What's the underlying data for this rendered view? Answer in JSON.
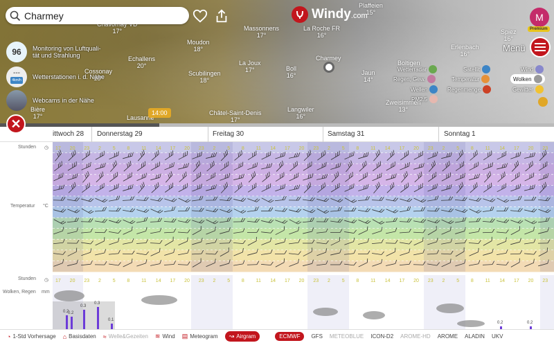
{
  "search": {
    "value": "Charmey"
  },
  "logo": {
    "name": "Windy",
    "suffix": ".com"
  },
  "account": {
    "initial": "M",
    "badge": "Premium"
  },
  "menu_label": "Menü",
  "towns": [
    {
      "name": "Chavornay VD",
      "temp": "17°"
    },
    {
      "name": "Monitoring von Luftquali-",
      "temp": ""
    },
    {
      "name": "Moudon",
      "temp": "18°"
    },
    {
      "name": "Massonnens",
      "temp": "17°"
    },
    {
      "name": "La Roche FR",
      "temp": "16°"
    },
    {
      "name": "Plaffeien",
      "temp": "15°"
    },
    {
      "name": "Echallens",
      "temp": "20°"
    },
    {
      "name": "La Joux",
      "temp": "17°"
    },
    {
      "name": "Cossonay",
      "temp": "18°"
    },
    {
      "name": "Scubilingen",
      "temp": "18°"
    },
    {
      "name": "Boll",
      "temp": "16°"
    },
    {
      "name": "Charmey",
      "temp": ""
    },
    {
      "name": "Jaun",
      "temp": "14°"
    },
    {
      "name": "Erlenbach",
      "temp": "16°"
    },
    {
      "name": "Spiez",
      "temp": "16°"
    },
    {
      "name": "Boltigen",
      "temp": ""
    },
    {
      "name": "Châtel-Saint-Denis",
      "temp": "17°"
    },
    {
      "name": "Langwiler",
      "temp": "16°"
    },
    {
      "name": "Zweisimmen",
      "temp": "13°"
    },
    {
      "name": "Bière",
      "temp": "17°"
    },
    {
      "name": "Lausanne",
      "temp": ""
    },
    {
      "name": "Spiez",
      "temp": ""
    }
  ],
  "side": [
    {
      "badge": "96",
      "label": "Monitoring von Luftquali-\ntät und Strahlung"
    },
    {
      "badge": "---",
      "sub": "4km/h",
      "label": "Wetterstationen i. d. Nähe"
    },
    {
      "badge": "",
      "label": "Webcams in der Nähe"
    }
  ],
  "layers": [
    {
      "label": "Wetterradar",
      "color": "#6aa84f"
    },
    {
      "label": "Satellit",
      "color": "#3d85c6"
    },
    {
      "label": "Wind",
      "color": "#88c"
    },
    {
      "label": "Regen, Gew.",
      "color": "#c27ba0"
    },
    {
      "label": "Temperatur",
      "color": "#e69138"
    },
    {
      "label": "Wolken",
      "color": "#999"
    },
    {
      "label": "Wellen",
      "color": "#3d85c6"
    },
    {
      "label": "Regenmenge",
      "color": "#cc4125"
    },
    {
      "label": "Gewitter",
      "color": "#f1c232"
    },
    {
      "label": "PM2.5",
      "color": "#e6b8af"
    }
  ],
  "time_badge": "14:00",
  "days": [
    "ittwoch 28",
    "Donnerstag 29",
    "Freitag 30",
    "Samstag 31",
    "Sonntag 1"
  ],
  "gram": {
    "hours_label": "Stunden",
    "temp_label": "Temperatur",
    "temp_unit": "°C",
    "clouds_label": "Wolken, Regen",
    "rain_unit": "mm",
    "hours": [
      "17",
      "20",
      "23",
      "2",
      "5",
      "8",
      "11",
      "14",
      "17",
      "20",
      "23",
      "2",
      "5",
      "8",
      "11",
      "14",
      "17",
      "20",
      "23",
      "2",
      "5",
      "8",
      "11",
      "14",
      "17",
      "20",
      "23",
      "2",
      "5",
      "8",
      "11",
      "14",
      "17",
      "20",
      "23"
    ],
    "rain_values": [
      "0.3",
      "0.2",
      "0.3",
      "0.2",
      "0.1",
      "0.2",
      "0.2"
    ]
  },
  "bottom": [
    {
      "label": "1-Std Vorhersage",
      "icon": "clock-icon"
    },
    {
      "label": "Basisdaten",
      "icon": "chart-icon"
    },
    {
      "label": "Welle&Gezeiten",
      "icon": "wave-icon"
    },
    {
      "label": "Wind",
      "icon": "wind-icon"
    },
    {
      "label": "Meteogram",
      "icon": "meteogram-icon"
    },
    {
      "label": "Airgram",
      "icon": "airgram-icon"
    }
  ],
  "models": [
    "ECMWF",
    "GFS",
    "METEOBLUE",
    "ICON-D2",
    "AROME-HD",
    "AROME",
    "ALADIN",
    "UKV"
  ]
}
